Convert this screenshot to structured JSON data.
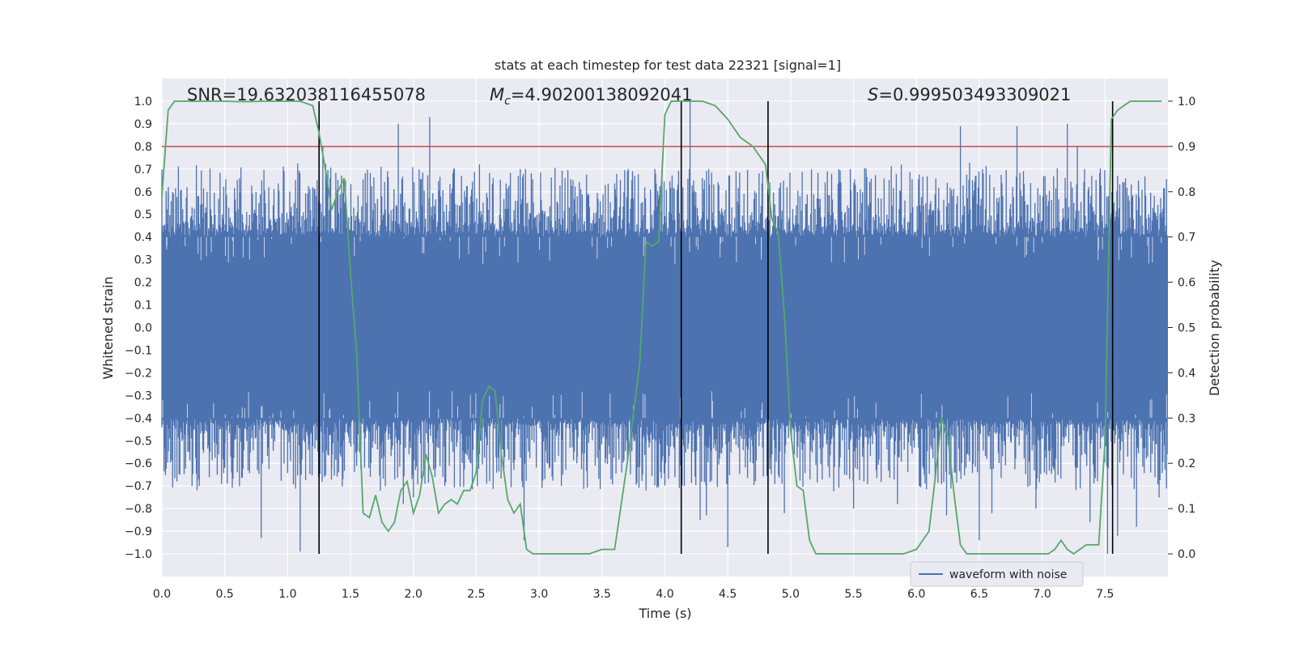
{
  "chart_data": {
    "type": "line",
    "title": "stats at each timestep for test data 22321 [signal=1]",
    "xlabel": "Time (s)",
    "ylabel": "Whitened strain",
    "y2label": "Detection probability",
    "xlim": [
      0.0,
      8.0
    ],
    "ylim": [
      -1.1,
      1.1
    ],
    "y2lim": [
      -0.05,
      1.05
    ],
    "x_ticks": [
      "0.0",
      "0.5",
      "1.0",
      "1.5",
      "2.0",
      "2.5",
      "3.0",
      "3.5",
      "4.0",
      "4.5",
      "5.0",
      "5.5",
      "6.0",
      "6.5",
      "7.0",
      "7.5"
    ],
    "x_tick_values": [
      0.0,
      0.5,
      1.0,
      1.5,
      2.0,
      2.5,
      3.0,
      3.5,
      4.0,
      4.5,
      5.0,
      5.5,
      6.0,
      6.5,
      7.0,
      7.5
    ],
    "y_ticks": [
      "1.0",
      "0.9",
      "0.8",
      "0.7",
      "0.6",
      "0.5",
      "0.4",
      "0.3",
      "0.2",
      "0.1",
      "0.0",
      "−0.1",
      "−0.2",
      "−0.3",
      "−0.4",
      "−0.5",
      "−0.6",
      "−0.7",
      "−0.8",
      "−0.9",
      "−1.0"
    ],
    "y_tick_values": [
      1.0,
      0.9,
      0.8,
      0.7,
      0.6,
      0.5,
      0.4,
      0.3,
      0.2,
      0.1,
      0.0,
      -0.1,
      -0.2,
      -0.3,
      -0.4,
      -0.5,
      -0.6,
      -0.7,
      -0.8,
      -0.9,
      -1.0
    ],
    "y2_ticks": [
      "1.0",
      "0.9",
      "0.8",
      "0.7",
      "0.6",
      "0.5",
      "0.4",
      "0.3",
      "0.2",
      "0.1",
      "0.0"
    ],
    "y2_tick_values": [
      1.0,
      0.9,
      0.8,
      0.7,
      0.6,
      0.5,
      0.4,
      0.3,
      0.2,
      0.1,
      0.0
    ],
    "annotations": {
      "snr": "SNR=19.632038116455078",
      "mc_symbol": "M",
      "mc_sub": "c",
      "mc_value": "=4.90200138092041",
      "s_symbol": "S",
      "s_value": "=0.999503493309021"
    },
    "threshold": 0.9,
    "vlines": [
      1.25,
      4.13,
      4.82,
      7.56
    ],
    "waveform": {
      "name": "waveform with noise",
      "duration": 8.0,
      "core_amplitude": 0.4,
      "peak_points": [
        [
          0.05,
          0.6
        ],
        [
          0.12,
          -0.68
        ],
        [
          0.2,
          0.62
        ],
        [
          0.36,
          0.6
        ],
        [
          0.6,
          -0.64
        ],
        [
          0.62,
          0.6
        ],
        [
          0.79,
          -0.93
        ],
        [
          0.85,
          0.62
        ],
        [
          1.1,
          -0.99
        ],
        [
          1.2,
          0.62
        ],
        [
          1.28,
          0.8
        ],
        [
          1.35,
          -0.62
        ],
        [
          1.46,
          0.65
        ],
        [
          1.88,
          0.9
        ],
        [
          1.92,
          -0.78
        ],
        [
          2.13,
          0.93
        ],
        [
          2.25,
          -0.7
        ],
        [
          2.85,
          0.7
        ],
        [
          2.88,
          -0.94
        ],
        [
          3.3,
          -0.6
        ],
        [
          3.85,
          -0.72
        ],
        [
          4.2,
          1.0
        ],
        [
          4.28,
          -0.85
        ],
        [
          4.33,
          -0.83
        ],
        [
          4.5,
          -0.97
        ],
        [
          4.7,
          -0.6
        ],
        [
          4.95,
          -0.82
        ],
        [
          5.4,
          0.64
        ],
        [
          5.5,
          -0.8
        ],
        [
          5.6,
          0.7
        ],
        [
          5.85,
          -0.78
        ],
        [
          5.88,
          0.72
        ],
        [
          6.03,
          -0.7
        ],
        [
          6.24,
          -0.83
        ],
        [
          6.35,
          0.89
        ],
        [
          6.5,
          -0.94
        ],
        [
          6.6,
          -0.82
        ],
        [
          6.8,
          0.89
        ],
        [
          6.95,
          -0.8
        ],
        [
          7.2,
          0.9
        ],
        [
          7.28,
          0.8
        ],
        [
          7.38,
          -0.86
        ],
        [
          7.52,
          -1.0
        ],
        [
          7.6,
          -0.92
        ],
        [
          7.75,
          -0.88
        ],
        [
          7.93,
          -0.75
        ],
        [
          0.5,
          -0.62
        ],
        [
          2.0,
          -0.75
        ]
      ],
      "color": "#4c72b0"
    },
    "probability": {
      "x": [
        0.0,
        0.05,
        0.1,
        0.15,
        0.2,
        0.3,
        0.4,
        0.5,
        0.6,
        0.7,
        0.8,
        0.9,
        1.0,
        1.1,
        1.2,
        1.25,
        1.3,
        1.35,
        1.4,
        1.45,
        1.5,
        1.55,
        1.6,
        1.65,
        1.7,
        1.75,
        1.8,
        1.85,
        1.9,
        1.95,
        2.0,
        2.05,
        2.1,
        2.15,
        2.2,
        2.25,
        2.3,
        2.35,
        2.4,
        2.45,
        2.5,
        2.55,
        2.6,
        2.65,
        2.7,
        2.75,
        2.8,
        2.85,
        2.9,
        2.95,
        3.0,
        3.05,
        3.1,
        3.15,
        3.2,
        3.3,
        3.4,
        3.5,
        3.6,
        3.7,
        3.8,
        3.85,
        3.9,
        3.95,
        4.0,
        4.05,
        4.1,
        4.15,
        4.2,
        4.25,
        4.3,
        4.4,
        4.5,
        4.6,
        4.7,
        4.8,
        4.85,
        4.9,
        4.95,
        5.0,
        5.05,
        5.1,
        5.15,
        5.2,
        5.3,
        5.4,
        5.5,
        5.6,
        5.7,
        5.8,
        5.9,
        6.0,
        6.1,
        6.15,
        6.2,
        6.25,
        6.3,
        6.35,
        6.4,
        6.45,
        6.5,
        6.6,
        6.7,
        6.8,
        6.9,
        7.0,
        7.05,
        7.1,
        7.15,
        7.2,
        7.25,
        7.3,
        7.35,
        7.4,
        7.45,
        7.5,
        7.55,
        7.6,
        7.65,
        7.7,
        7.8,
        7.9,
        7.95
      ],
      "y": [
        0.79,
        0.98,
        1.0,
        1.0,
        1.0,
        1.0,
        1.0,
        1.0,
        0.999,
        0.999,
        1.0,
        1.0,
        1.0,
        1.0,
        0.99,
        0.93,
        0.85,
        0.76,
        0.8,
        0.83,
        0.62,
        0.44,
        0.09,
        0.08,
        0.13,
        0.07,
        0.05,
        0.07,
        0.14,
        0.16,
        0.09,
        0.13,
        0.22,
        0.17,
        0.09,
        0.11,
        0.12,
        0.11,
        0.14,
        0.14,
        0.18,
        0.34,
        0.37,
        0.36,
        0.22,
        0.12,
        0.09,
        0.11,
        0.01,
        0.0,
        0.0,
        0.0,
        0.0,
        0.0,
        0.0,
        0.0,
        0.0,
        0.01,
        0.01,
        0.2,
        0.42,
        0.69,
        0.68,
        0.69,
        0.97,
        1.0,
        1.0,
        1.0,
        1.0,
        1.0,
        1.0,
        0.99,
        0.96,
        0.92,
        0.9,
        0.86,
        0.74,
        0.71,
        0.53,
        0.27,
        0.15,
        0.14,
        0.03,
        0.0,
        0.0,
        0.0,
        0.0,
        0.0,
        0.0,
        0.0,
        0.0,
        0.01,
        0.05,
        0.17,
        0.3,
        0.26,
        0.13,
        0.02,
        0.0,
        0.0,
        0.0,
        0.0,
        0.0,
        0.0,
        0.0,
        0.0,
        0.0,
        0.01,
        0.03,
        0.01,
        0.0,
        0.01,
        0.02,
        0.02,
        0.02,
        0.25,
        0.96,
        0.98,
        0.99,
        1.0,
        1.0,
        1.0,
        1.0
      ],
      "color": "#55a868"
    },
    "legend": {
      "label": "waveform with noise",
      "location": "lower-center-right"
    },
    "grid": true
  }
}
